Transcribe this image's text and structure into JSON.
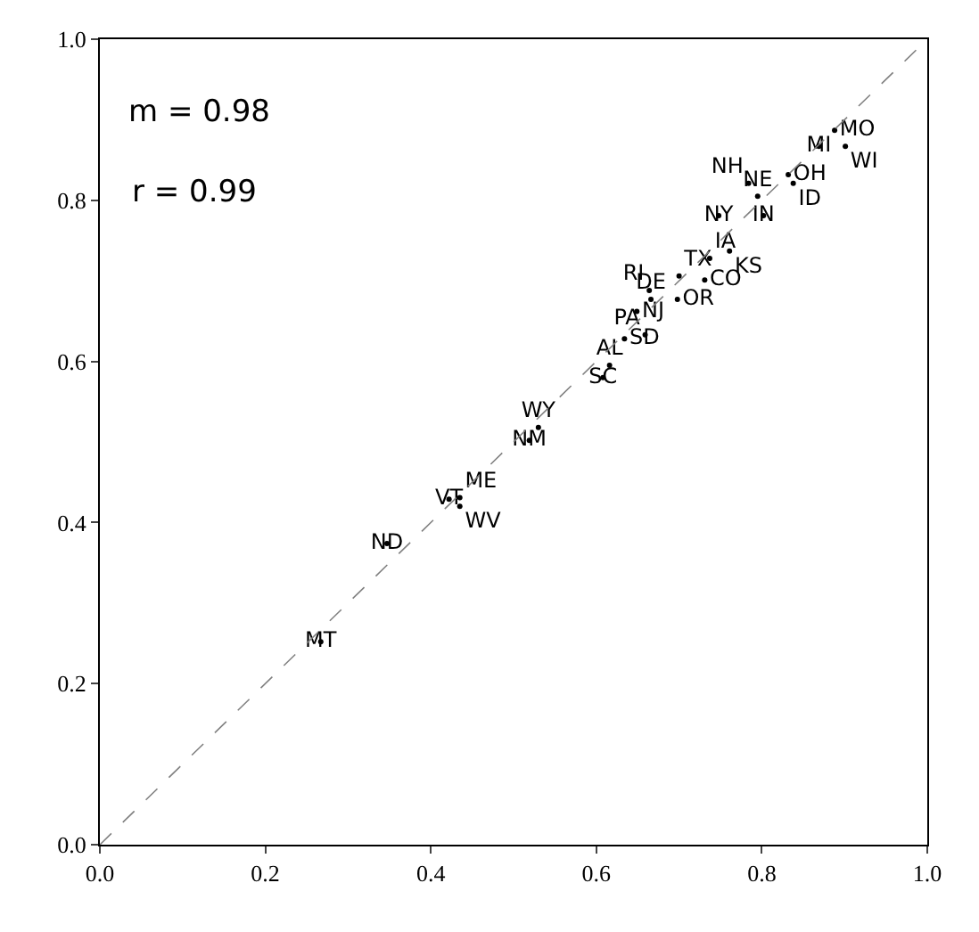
{
  "chart_data": {
    "type": "scatter",
    "annotations": [
      "m = 0.98",
      "r = 0.99"
    ],
    "series": [
      {
        "type": "scatter",
        "marker": "circle",
        "color": "#000000",
        "x": [
          0.267,
          0.347,
          0.422,
          0.435,
          0.435,
          0.519,
          0.53,
          0.608,
          0.616,
          0.634,
          0.659,
          0.649,
          0.666,
          0.664,
          0.698,
          0.7,
          0.731,
          0.737,
          0.761,
          0.748,
          0.802,
          0.795,
          0.784,
          0.832,
          0.838,
          0.869,
          0.888,
          0.901
        ],
        "values": [
          0.252,
          0.374,
          0.429,
          0.42,
          0.431,
          0.502,
          0.518,
          0.58,
          0.595,
          0.628,
          0.633,
          0.662,
          0.677,
          0.688,
          0.677,
          0.706,
          0.701,
          0.728,
          0.737,
          0.781,
          0.781,
          0.805,
          0.821,
          0.832,
          0.821,
          0.867,
          0.887,
          0.867
        ],
        "value_labels": [
          "MT",
          "ND",
          "VT",
          "WV",
          "ME",
          "NM",
          "WY",
          "SC",
          "AL",
          "SD",
          "PA",
          "NJ",
          "DE",
          "RI",
          "OR",
          "TX",
          "CO",
          "IA",
          "KS",
          "NY",
          "IN",
          "NE",
          "NH",
          "OH",
          "ID",
          "MI",
          "MO",
          "WI"
        ]
      },
      {
        "type": "line",
        "line_style": "dashed",
        "color": "#808080",
        "x": [
          0,
          1
        ],
        "values": [
          0,
          1
        ]
      }
    ],
    "xlim": [
      0,
      1
    ],
    "ylim": [
      0,
      1
    ],
    "xticks": [
      {
        "value": 0,
        "label": "0.0"
      },
      0.2,
      0.4,
      0.6,
      0.8,
      {
        "value": 1,
        "label": "1.0"
      }
    ],
    "yticks": [
      {
        "value": 0,
        "label": "0.0"
      },
      0.2,
      0.4,
      0.6,
      0.8,
      {
        "value": 1,
        "label": "1.0"
      }
    ]
  }
}
